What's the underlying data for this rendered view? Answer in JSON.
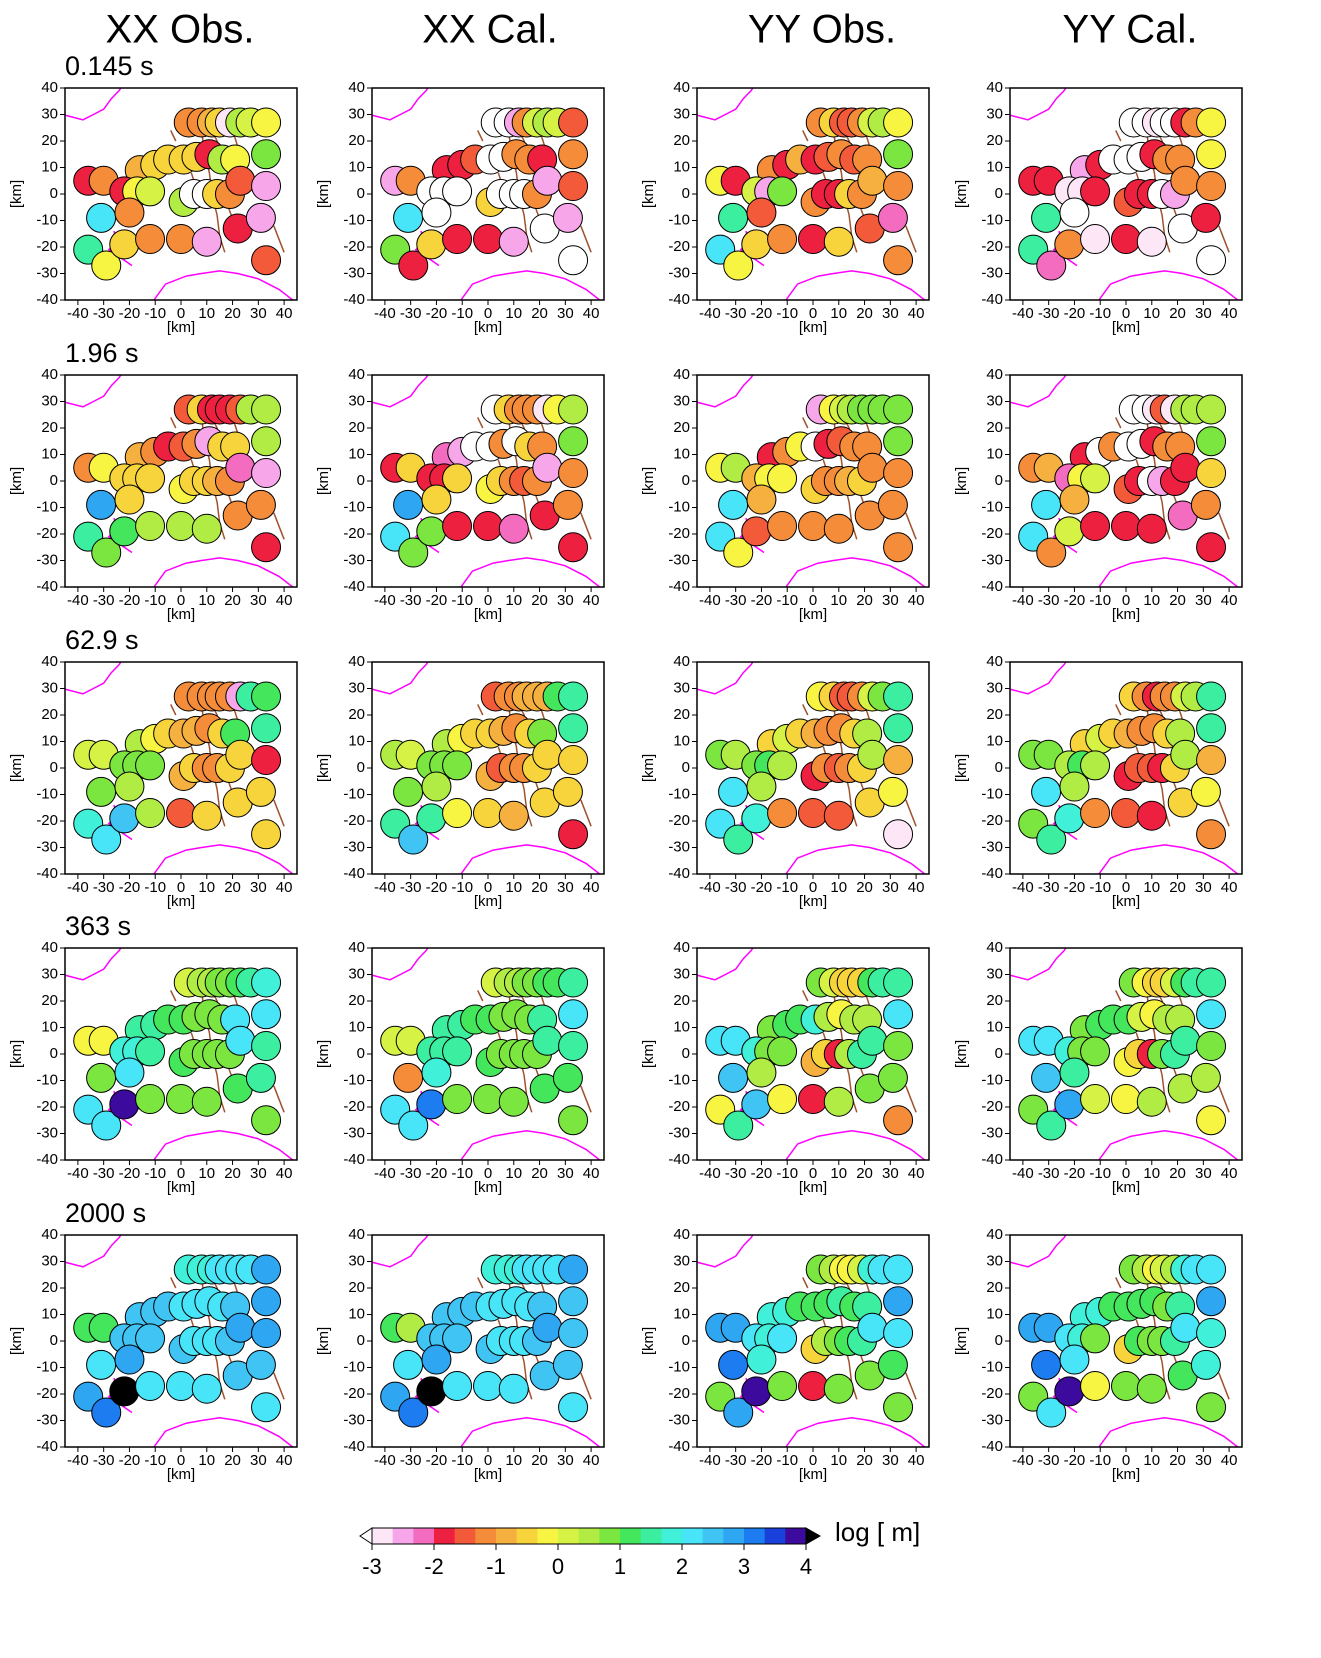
{
  "chart_data": {
    "type": "scatter",
    "column_titles": [
      "XX Obs.",
      "XX Cal.",
      "YY Obs.",
      "YY Cal."
    ],
    "xlabel": "[km]",
    "ylabel": "[km]",
    "xlim": [
      -45,
      45
    ],
    "ylim": [
      -40,
      40
    ],
    "xticks": [
      -40,
      -30,
      -20,
      -10,
      0,
      10,
      20,
      30,
      40
    ],
    "yticks": [
      -40,
      -30,
      -20,
      -10,
      0,
      10,
      20,
      30,
      40
    ],
    "x": [
      3,
      8,
      12,
      15,
      19,
      23,
      27,
      33,
      33,
      -16,
      -10,
      -5,
      1,
      6,
      11,
      16,
      21,
      -36,
      -30,
      -22,
      -17,
      -12,
      1,
      5,
      10,
      14,
      19,
      23,
      33,
      -31,
      -20,
      -36,
      -29,
      -22,
      -12,
      0,
      10,
      22,
      31,
      33
    ],
    "y": [
      27,
      27,
      27,
      27,
      27,
      27,
      27,
      27,
      15,
      9,
      11,
      13,
      13,
      14,
      15,
      13,
      13,
      5,
      5,
      1,
      1,
      1,
      -3,
      0,
      0,
      0,
      0,
      5,
      3,
      -9,
      -7,
      -21,
      -27,
      -19,
      -17,
      -17,
      -18,
      -13,
      -9,
      -25
    ],
    "clim": [
      -3,
      4
    ],
    "cticks": [
      -3,
      -2,
      -1,
      0,
      1,
      2,
      3,
      4
    ],
    "clabel": "log [ m]",
    "colors": [
      "#fde6f5",
      "#f8a6ea",
      "#f36cc0",
      "#ee2040",
      "#f25a3a",
      "#f48c3a",
      "#f6b040",
      "#f7d43c",
      "#f7f542",
      "#d6f244",
      "#b0ec44",
      "#7ce640",
      "#44e65c",
      "#3ceea0",
      "#40f0d8",
      "#48e4f8",
      "#40c4f4",
      "#2ea6f2",
      "#1c7cf0",
      "#1a40dc",
      "#3c0a9c"
    ],
    "under_color": "#ffffff",
    "over_color": "#000000",
    "rows": [
      {
        "title": "0.145 s",
        "values": [
          [
            -1.2,
            -1.2,
            -1.0,
            -0.5,
            -2.8,
            0.5,
            0.2,
            -0.2,
            0.8,
            -0.8,
            -0.5,
            -0.5,
            -0.5,
            -0.5,
            -1.8,
            0.5,
            -0.2,
            -1.8,
            -1.2,
            -1.8,
            -0.2,
            0.2,
            0.5,
            -3.2,
            -3.2,
            -0.5,
            -1.2,
            -1.5,
            -2.5,
            2.2,
            -1.2,
            1.5,
            -0.2,
            -0.5,
            -1.2,
            -1.2,
            -2.5,
            -1.8,
            -2.5,
            -1.5
          ],
          [
            -3.2,
            -3.2,
            -2.5,
            -1.2,
            0.2,
            0.5,
            0.2,
            -1.5,
            -1.2,
            -1.8,
            -1.8,
            -1.5,
            -3.2,
            -3.2,
            -1.2,
            -1.2,
            -1.8,
            -2.5,
            -1.2,
            -3.2,
            -3.2,
            -3.2,
            -0.5,
            -3.2,
            -3.2,
            -3.2,
            -1.2,
            -2.5,
            -1.5,
            2.2,
            -3.2,
            0.8,
            -1.8,
            -0.5,
            -1.8,
            -1.8,
            -2.5,
            -3.2,
            -2.5,
            -3.2
          ],
          [
            -1.2,
            -0.5,
            -1.5,
            -1.5,
            -1.2,
            0.2,
            0.5,
            -0.2,
            0.8,
            -1.2,
            -1.8,
            -0.8,
            -1.8,
            -1.5,
            -1.2,
            -1.5,
            -1.2,
            -0.2,
            -1.8,
            0.2,
            -2.5,
            0.8,
            -1.2,
            -1.8,
            -1.8,
            -0.5,
            -1.2,
            -0.8,
            -1.2,
            1.5,
            -1.5,
            2.2,
            -0.2,
            -0.5,
            -1.2,
            -1.8,
            -0.5,
            -1.5,
            -2.2,
            -1.2
          ],
          [
            -3.2,
            -3.2,
            -2.8,
            -3.2,
            -3.2,
            -1.8,
            -1.2,
            -0.2,
            -0.2,
            -2.5,
            -1.8,
            -3.2,
            -3.2,
            -3.2,
            -1.8,
            -1.2,
            -1.2,
            -1.8,
            -1.8,
            -2.8,
            -2.8,
            -1.8,
            -1.5,
            -1.8,
            -1.8,
            -3.2,
            -2.5,
            -1.2,
            -1.2,
            1.5,
            -3.2,
            1.5,
            -2.2,
            -1.2,
            -2.8,
            -1.8,
            -2.8,
            -3.2,
            -1.8,
            -3.2
          ]
        ]
      },
      {
        "title": "1.96 s",
        "values": [
          [
            -1.5,
            -0.5,
            -1.8,
            -1.8,
            -1.8,
            -1.5,
            0.5,
            0.5,
            0.5,
            -0.8,
            -1.2,
            -1.8,
            -1.5,
            -1.2,
            -2.5,
            -0.5,
            -0.5,
            -1.2,
            -0.2,
            -0.5,
            -0.5,
            -0.5,
            -0.2,
            -0.5,
            -0.5,
            -0.8,
            -1.2,
            -2.2,
            -2.5,
            2.8,
            -0.5,
            1.5,
            0.8,
            1.0,
            0.5,
            0.5,
            0.5,
            -1.2,
            -1.2,
            -1.8
          ],
          [
            -3.2,
            -0.5,
            -1.2,
            -1.2,
            -1.2,
            -2.8,
            -0.2,
            0.5,
            0.8,
            -2.2,
            -2.5,
            -3.2,
            -3.2,
            -1.2,
            -3.2,
            -0.5,
            -1.2,
            -1.8,
            -0.5,
            -1.8,
            -1.8,
            -0.5,
            -0.2,
            -0.5,
            -1.2,
            -1.5,
            -1.2,
            -2.5,
            -1.2,
            2.8,
            -0.5,
            2.2,
            0.8,
            0.8,
            -1.8,
            -1.8,
            -2.2,
            -1.8,
            -1.2,
            -1.8
          ],
          [
            -2.5,
            -0.2,
            0.2,
            0.5,
            0.8,
            0.8,
            0.8,
            0.8,
            0.8,
            -1.8,
            -1.2,
            -0.2,
            -3.2,
            -1.8,
            -1.5,
            -1.2,
            -1.2,
            -0.2,
            0.5,
            -0.8,
            -0.2,
            -0.2,
            -0.5,
            -1.2,
            -1.2,
            -0.8,
            -0.5,
            -1.2,
            -1.2,
            2.2,
            -0.8,
            2.2,
            -0.2,
            -1.5,
            -1.2,
            -1.2,
            -1.2,
            -1.2,
            -1.2,
            -1.2
          ],
          [
            -3.2,
            -3.2,
            -2.8,
            -1.5,
            -2.8,
            0.5,
            0.5,
            0.5,
            0.8,
            -1.8,
            -3.2,
            -1.2,
            -3.2,
            -3.2,
            -1.8,
            -1.2,
            -1.2,
            -1.2,
            -0.8,
            -2.2,
            -0.2,
            0.2,
            -1.5,
            -1.8,
            -3.2,
            -2.5,
            -1.8,
            -1.8,
            -0.5,
            2.2,
            -0.8,
            2.2,
            -1.2,
            0.2,
            -1.8,
            -1.8,
            -1.8,
            -2.2,
            -1.2,
            -1.8
          ]
        ]
      },
      {
        "title": "62.9 s",
        "values": [
          [
            -1.2,
            -1.2,
            -1.2,
            -1.2,
            -1.2,
            -2.5,
            1.5,
            1.2,
            1.5,
            0.5,
            -0.2,
            -0.5,
            -0.8,
            -0.8,
            -1.2,
            -0.5,
            1.2,
            0.2,
            0.2,
            0.8,
            0.8,
            0.8,
            -0.8,
            -0.5,
            -1.2,
            -1.2,
            -0.5,
            -0.5,
            -1.8,
            0.8,
            0.5,
            1.8,
            2.2,
            2.5,
            0.5,
            -1.5,
            -0.5,
            -0.5,
            -0.5,
            -0.5
          ],
          [
            -1.5,
            -1.2,
            -1.2,
            -0.8,
            -0.8,
            -0.8,
            1.2,
            1.5,
            1.5,
            0.5,
            -0.2,
            -0.5,
            -0.5,
            -0.8,
            -1.2,
            -0.5,
            0.8,
            0.5,
            0.2,
            0.8,
            0.8,
            0.8,
            -0.8,
            -1.5,
            -1.2,
            -1.2,
            -0.5,
            -0.5,
            -0.5,
            0.8,
            0.5,
            1.5,
            2.5,
            1.5,
            -0.2,
            -0.5,
            -0.8,
            -0.5,
            -0.5,
            -1.8
          ],
          [
            -0.2,
            -0.5,
            -1.5,
            -1.5,
            -1.2,
            0.2,
            0.8,
            1.5,
            1.5,
            -0.5,
            0.2,
            -0.5,
            -0.8,
            -1.2,
            -1.2,
            -0.5,
            0.5,
            0.8,
            0.5,
            0.8,
            1.2,
            0.5,
            -1.8,
            -1.2,
            -1.5,
            -1.2,
            -0.5,
            0.5,
            -0.8,
            2.2,
            0.5,
            2.2,
            1.5,
            1.8,
            -1.2,
            -1.5,
            -1.5,
            -0.5,
            -0.2,
            -2.8
          ],
          [
            -0.5,
            -1.2,
            -1.8,
            -1.2,
            -1.2,
            0.2,
            0.5,
            1.5,
            1.5,
            -0.5,
            0.2,
            -0.5,
            -0.8,
            -1.2,
            -1.2,
            -0.5,
            0.5,
            0.8,
            0.8,
            0.5,
            1.2,
            0.5,
            -1.8,
            -1.5,
            -1.5,
            -1.8,
            -0.5,
            0.5,
            -0.8,
            2.2,
            0.5,
            0.8,
            1.5,
            1.8,
            -1.2,
            -1.5,
            -1.8,
            -0.5,
            -0.2,
            -1.2
          ]
        ]
      },
      {
        "title": "363 s",
        "values": [
          [
            0.2,
            0.5,
            0.5,
            0.8,
            0.8,
            1.2,
            1.5,
            1.8,
            2.2,
            1.5,
            1.5,
            1.2,
            1.2,
            0.8,
            0.8,
            0.8,
            2.2,
            -0.2,
            -0.2,
            1.8,
            1.8,
            1.5,
            1.2,
            0.8,
            0.8,
            0.8,
            0.8,
            2.2,
            1.5,
            0.8,
            2.2,
            2.2,
            2.2,
            3.8,
            0.8,
            0.8,
            0.8,
            1.2,
            1.5,
            0.8
          ],
          [
            0.2,
            0.5,
            0.5,
            0.8,
            0.8,
            1.2,
            1.2,
            1.5,
            2.2,
            1.5,
            1.5,
            1.2,
            1.2,
            0.8,
            0.8,
            0.8,
            1.5,
            0.2,
            0.2,
            1.5,
            1.5,
            1.5,
            1.2,
            0.8,
            0.8,
            0.8,
            0.8,
            1.5,
            1.5,
            -1.2,
            1.8,
            2.2,
            2.2,
            3.2,
            0.8,
            0.8,
            0.8,
            1.2,
            1.2,
            0.8
          ],
          [
            0.8,
            0.2,
            -0.5,
            -0.5,
            -0.5,
            1.2,
            1.5,
            1.5,
            2.2,
            0.8,
            1.2,
            1.2,
            1.8,
            0.5,
            -0.2,
            0.5,
            0.5,
            2.2,
            2.2,
            1.8,
            0.8,
            0.8,
            -0.8,
            -0.5,
            -1.8,
            0.5,
            1.5,
            1.5,
            0.8,
            2.5,
            0.5,
            -0.2,
            1.5,
            2.5,
            -0.2,
            -1.8,
            0.5,
            0.8,
            0.8,
            -1.2
          ],
          [
            0.8,
            -0.2,
            -0.5,
            -0.5,
            0.2,
            1.2,
            1.5,
            1.5,
            2.2,
            0.8,
            1.2,
            1.2,
            1.2,
            0.2,
            -0.2,
            0.5,
            0.5,
            2.2,
            2.2,
            1.8,
            0.8,
            0.8,
            -0.2,
            -0.5,
            -1.8,
            0.8,
            1.5,
            1.5,
            0.8,
            2.5,
            1.5,
            0.8,
            1.5,
            2.8,
            0.2,
            -0.2,
            0.5,
            0.5,
            0.5,
            -0.2
          ]
        ]
      },
      {
        "title": "2000 s",
        "values": [
          [
            1.8,
            1.8,
            1.8,
            2.2,
            2.2,
            2.2,
            2.2,
            2.8,
            2.8,
            2.5,
            2.5,
            2.5,
            2.2,
            2.2,
            2.2,
            2.2,
            2.5,
            1.2,
            1.2,
            2.5,
            2.5,
            2.5,
            2.5,
            2.2,
            2.2,
            2.2,
            2.5,
            2.8,
            2.8,
            2.2,
            2.8,
            2.8,
            3.2,
            4.2,
            2.2,
            2.2,
            2.2,
            2.5,
            2.5,
            2.2
          ],
          [
            1.8,
            1.8,
            1.8,
            2.2,
            2.2,
            2.2,
            2.2,
            2.8,
            2.5,
            2.5,
            2.5,
            2.5,
            2.2,
            2.2,
            2.2,
            2.2,
            2.5,
            1.2,
            0.5,
            2.5,
            2.5,
            2.5,
            2.5,
            2.2,
            2.2,
            2.2,
            2.5,
            2.8,
            2.5,
            2.2,
            2.8,
            2.8,
            3.2,
            4.2,
            2.2,
            2.2,
            2.2,
            2.5,
            2.5,
            2.2
          ],
          [
            0.8,
            0.5,
            -0.2,
            -0.2,
            0.2,
            1.8,
            2.2,
            2.2,
            2.8,
            1.8,
            1.8,
            1.2,
            1.2,
            1.2,
            1.5,
            1.2,
            1.5,
            2.8,
            2.8,
            2.2,
            1.8,
            2.2,
            -0.5,
            0.5,
            0.8,
            1.2,
            1.5,
            2.2,
            2.2,
            3.2,
            1.8,
            0.8,
            2.8,
            3.8,
            0.8,
            -1.8,
            0.8,
            0.8,
            1.2,
            0.8
          ],
          [
            0.8,
            0.5,
            -0.2,
            0.2,
            0.5,
            1.8,
            2.2,
            2.2,
            2.8,
            1.8,
            1.8,
            1.2,
            1.2,
            1.2,
            1.2,
            0.8,
            1.5,
            2.8,
            2.8,
            2.2,
            1.8,
            0.8,
            -0.5,
            1.2,
            0.8,
            0.8,
            1.5,
            2.2,
            1.8,
            3.2,
            2.2,
            0.8,
            2.2,
            3.8,
            -0.2,
            0.8,
            0.8,
            1.2,
            1.8,
            0.8
          ]
        ]
      }
    ]
  }
}
